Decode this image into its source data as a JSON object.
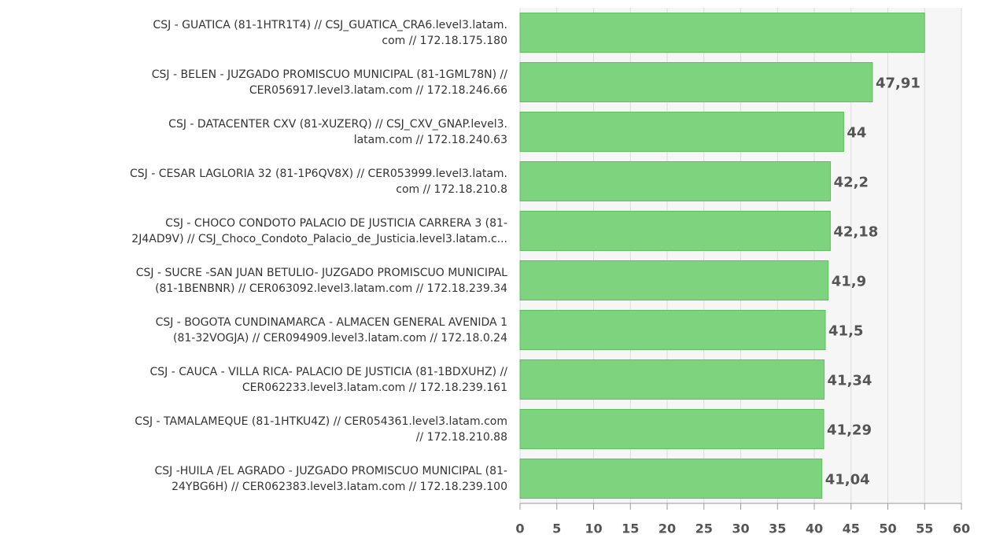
{
  "chart_data": {
    "type": "bar",
    "orientation": "horizontal",
    "categories": [
      "CSJ - GUATICA (81-1HTR1T4) // CSJ_GUATICA_CRA6.level3.latam.\ncom // 172.18.175.180",
      "CSJ - BELEN - JUZGADO PROMISCUO MUNICIPAL (81-1GML78N) //\nCER056917.level3.latam.com // 172.18.246.66",
      "CSJ - DATACENTER CXV (81-XUZERQ) // CSJ_CXV_GNAP.level3.\nlatam.com // 172.18.240.63",
      "CSJ - CESAR LAGLORIA 32 (81-1P6QV8X) // CER053999.level3.latam.\ncom // 172.18.210.8",
      "CSJ - CHOCO CONDOTO PALACIO DE JUSTICIA CARRERA 3 (81-\n2J4AD9V) // CSJ_Choco_Condoto_Palacio_de_Justicia.level3.latam.c...",
      "CSJ - SUCRE -SAN JUAN BETULIO-  JUZGADO PROMISCUO MUNICIPAL\n(81-1BENBNR) // CER063092.level3.latam.com // 172.18.239.34",
      "CSJ - BOGOTA CUNDINAMARCA -  ALMACEN GENERAL AVENIDA 1\n(81-32VOGJA) // CER094909.level3.latam.com // 172.18.0.24",
      "CSJ - CAUCA -  VILLA RICA- PALACIO DE JUSTICIA (81-1BDXUHZ) //\nCER062233.level3.latam.com // 172.18.239.161",
      "CSJ - TAMALAMEQUE (81-1HTKU4Z) // CER054361.level3.latam.com\n// 172.18.210.88",
      "CSJ -HUILA /EL AGRADO -  JUZGADO PROMISCUO MUNICIPAL (81-\n24YBG6H) // CER062383.level3.latam.com // 172.18.239.100"
    ],
    "values": [
      55,
      47.91,
      44,
      42.2,
      42.18,
      41.9,
      41.5,
      41.34,
      41.29,
      41.04
    ],
    "value_labels": [
      null,
      "47,91",
      "44",
      "42,2",
      "42,18",
      "41,9",
      "41,5",
      "41,34",
      "41,29",
      "41,04"
    ],
    "color": "#7ed37e",
    "xlim": [
      0,
      60
    ],
    "xticks": [
      0,
      5,
      10,
      15,
      20,
      25,
      30,
      35,
      40,
      45,
      50,
      55,
      60
    ],
    "grid": true
  }
}
